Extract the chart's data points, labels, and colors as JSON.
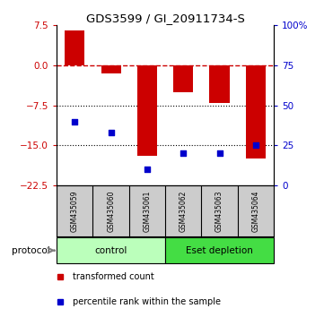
{
  "title": "GDS3599 / GI_20911734-S",
  "samples": [
    "GSM435059",
    "GSM435060",
    "GSM435061",
    "GSM435062",
    "GSM435063",
    "GSM435064"
  ],
  "red_bars": [
    6.5,
    -1.5,
    -17.0,
    -5.0,
    -7.0,
    -17.5
  ],
  "blue_dots": [
    40,
    33,
    10,
    20,
    20,
    25
  ],
  "ylim_left": [
    -22.5,
    7.5
  ],
  "ylim_right": [
    0,
    100
  ],
  "yticks_left": [
    7.5,
    0,
    -7.5,
    -15,
    -22.5
  ],
  "yticks_right": [
    100,
    75,
    50,
    25,
    0
  ],
  "ytick_labels_right": [
    "100%",
    "75",
    "50",
    "25",
    "0"
  ],
  "protocol_groups": {
    "control": [
      0,
      1,
      2
    ],
    "Eset depletion": [
      3,
      4,
      5
    ]
  },
  "control_color": "#bbffbb",
  "eset_color": "#44dd44",
  "bar_color": "#cc0000",
  "dot_color": "#0000cc",
  "legend_red_label": "transformed count",
  "legend_blue_label": "percentile rank within the sample",
  "protocol_label": "protocol",
  "background_sample": "#cccccc"
}
